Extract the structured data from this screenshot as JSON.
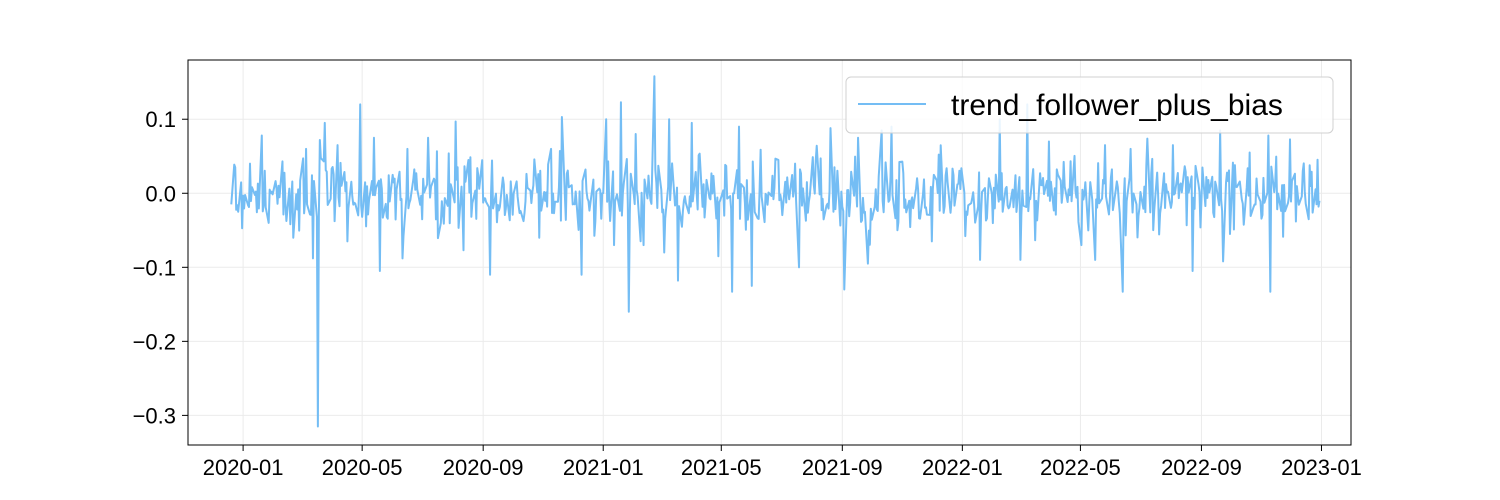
{
  "chart_data": {
    "type": "line",
    "title": "",
    "xlabel": "",
    "ylabel": "",
    "xlim": [
      "2019-11-06",
      "2023-01-31"
    ],
    "ylim": [
      -0.34,
      0.18
    ],
    "grid": true,
    "legend_position": "upper right",
    "x_ticks": [
      "2020-01",
      "2020-05",
      "2020-09",
      "2021-01",
      "2021-05",
      "2021-09",
      "2022-01",
      "2022-05",
      "2022-09",
      "2023-01"
    ],
    "y_ticks": [
      0.1,
      0.0,
      -0.1,
      -0.2,
      -0.3
    ],
    "y_tick_labels": [
      "0.1",
      "0.0",
      "−0.1",
      "−0.2",
      "−0.3"
    ],
    "series": [
      {
        "name": "trend_follower_plus_bias",
        "color": "#74bdf4",
        "frequency": "business days",
        "x_start": "2019-12-20",
        "x_end": "2022-12-30",
        "key_points": [
          {
            "x": "2019-12-20",
            "y": -0.015
          },
          {
            "x": "2019-12-24",
            "y": 0.035
          },
          {
            "x": "2019-12-27",
            "y": -0.025
          },
          {
            "x": "2020-01-08",
            "y": 0.04
          },
          {
            "x": "2020-01-20",
            "y": 0.078
          },
          {
            "x": "2020-01-27",
            "y": -0.04
          },
          {
            "x": "2020-02-10",
            "y": 0.043
          },
          {
            "x": "2020-02-21",
            "y": -0.06
          },
          {
            "x": "2020-03-05",
            "y": 0.06
          },
          {
            "x": "2020-03-12",
            "y": -0.088
          },
          {
            "x": "2020-03-17",
            "y": -0.315
          },
          {
            "x": "2020-03-19",
            "y": 0.072
          },
          {
            "x": "2020-03-24",
            "y": 0.095
          },
          {
            "x": "2020-04-06",
            "y": 0.065
          },
          {
            "x": "2020-04-16",
            "y": -0.065
          },
          {
            "x": "2020-04-29",
            "y": 0.12
          },
          {
            "x": "2020-05-13",
            "y": 0.075
          },
          {
            "x": "2020-05-19",
            "y": -0.105
          },
          {
            "x": "2020-06-11",
            "y": -0.088
          },
          {
            "x": "2020-06-16",
            "y": 0.06
          },
          {
            "x": "2020-07-20",
            "y": -0.04
          },
          {
            "x": "2020-08-04",
            "y": 0.097
          },
          {
            "x": "2020-08-12",
            "y": -0.077
          },
          {
            "x": "2020-09-08",
            "y": -0.11
          },
          {
            "x": "2020-10-28",
            "y": -0.06
          },
          {
            "x": "2020-11-09",
            "y": 0.06
          },
          {
            "x": "2020-11-20",
            "y": 0.103
          },
          {
            "x": "2020-12-10",
            "y": -0.11
          },
          {
            "x": "2021-01-04",
            "y": 0.1
          },
          {
            "x": "2021-01-12",
            "y": -0.07
          },
          {
            "x": "2021-01-19",
            "y": 0.123
          },
          {
            "x": "2021-01-27",
            "y": -0.16
          },
          {
            "x": "2021-02-03",
            "y": 0.08
          },
          {
            "x": "2021-02-11",
            "y": -0.07
          },
          {
            "x": "2021-02-22",
            "y": 0.158
          },
          {
            "x": "2021-03-04",
            "y": -0.08
          },
          {
            "x": "2021-03-09",
            "y": 0.1
          },
          {
            "x": "2021-03-18",
            "y": -0.118
          },
          {
            "x": "2021-04-01",
            "y": 0.095
          },
          {
            "x": "2021-05-12",
            "y": -0.133
          },
          {
            "x": "2021-05-19",
            "y": 0.09
          },
          {
            "x": "2021-06-01",
            "y": -0.125
          },
          {
            "x": "2021-06-28",
            "y": 0.045
          },
          {
            "x": "2021-07-19",
            "y": -0.1
          },
          {
            "x": "2021-08-20",
            "y": 0.088
          },
          {
            "x": "2021-09-03",
            "y": -0.13
          },
          {
            "x": "2021-09-17",
            "y": 0.075
          },
          {
            "x": "2021-09-27",
            "y": -0.095
          },
          {
            "x": "2021-10-11",
            "y": 0.085
          },
          {
            "x": "2021-10-21",
            "y": 0.09
          },
          {
            "x": "2021-12-01",
            "y": -0.065
          },
          {
            "x": "2022-01-19",
            "y": -0.09
          },
          {
            "x": "2022-02-08",
            "y": 0.1
          },
          {
            "x": "2022-03-01",
            "y": -0.09
          },
          {
            "x": "2022-03-08",
            "y": 0.12
          },
          {
            "x": "2022-03-30",
            "y": 0.07
          },
          {
            "x": "2022-05-02",
            "y": -0.07
          },
          {
            "x": "2022-05-16",
            "y": -0.09
          },
          {
            "x": "2022-05-26",
            "y": 0.065
          },
          {
            "x": "2022-06-13",
            "y": -0.133
          },
          {
            "x": "2022-06-21",
            "y": 0.06
          },
          {
            "x": "2022-08-03",
            "y": 0.065
          },
          {
            "x": "2022-08-23",
            "y": -0.105
          },
          {
            "x": "2022-09-20",
            "y": 0.085
          },
          {
            "x": "2022-09-23",
            "y": -0.092
          },
          {
            "x": "2022-10-20",
            "y": 0.055
          },
          {
            "x": "2022-11-08",
            "y": 0.078
          },
          {
            "x": "2022-11-10",
            "y": -0.133
          },
          {
            "x": "2022-12-13",
            "y": 0.03
          },
          {
            "x": "2022-12-19",
            "y": -0.035
          },
          {
            "x": "2022-12-30",
            "y": -0.01
          }
        ]
      }
    ]
  }
}
